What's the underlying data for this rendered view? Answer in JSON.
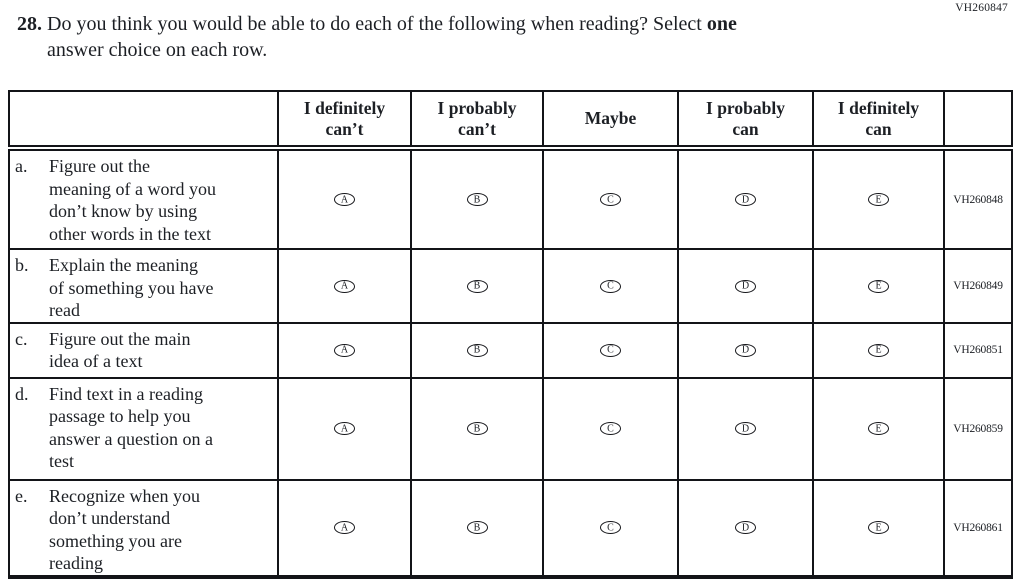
{
  "colors": {
    "ink": "#1c1f24",
    "grid_line": "#131418",
    "background": "#ffffff"
  },
  "question": {
    "top_code": "VH260847",
    "number": "28.",
    "text_before_bold": "Do you think you would be able to do each of the following when reading? Select ",
    "bold_word": "one",
    "text_after_bold": "\nanswer choice on each row."
  },
  "table": {
    "columns": [
      "I definitely\ncan’t",
      "I probably\ncan’t",
      "Maybe",
      "I probably\ncan",
      "I definitely\ncan"
    ],
    "option_letters": [
      "A",
      "B",
      "C",
      "D",
      "E"
    ],
    "rows": [
      {
        "letter": "a.",
        "text": "Figure out the\nmeaning of a word you\ndon’t know by using\nother words in the text",
        "code": "VH260848"
      },
      {
        "letter": "b.",
        "text": "Explain the meaning\nof something you have\nread",
        "code": "VH260849"
      },
      {
        "letter": "c.",
        "text": "Figure out the main\nidea of a text",
        "code": "VH260851"
      },
      {
        "letter": "d.",
        "text": "Find text in a reading\npassage to help you\nanswer a question on a\ntest",
        "code": "VH260859"
      },
      {
        "letter": "e.",
        "text": "Recognize when you\ndon’t understand\nsomething you are\nreading",
        "code": "VH260861"
      }
    ]
  }
}
